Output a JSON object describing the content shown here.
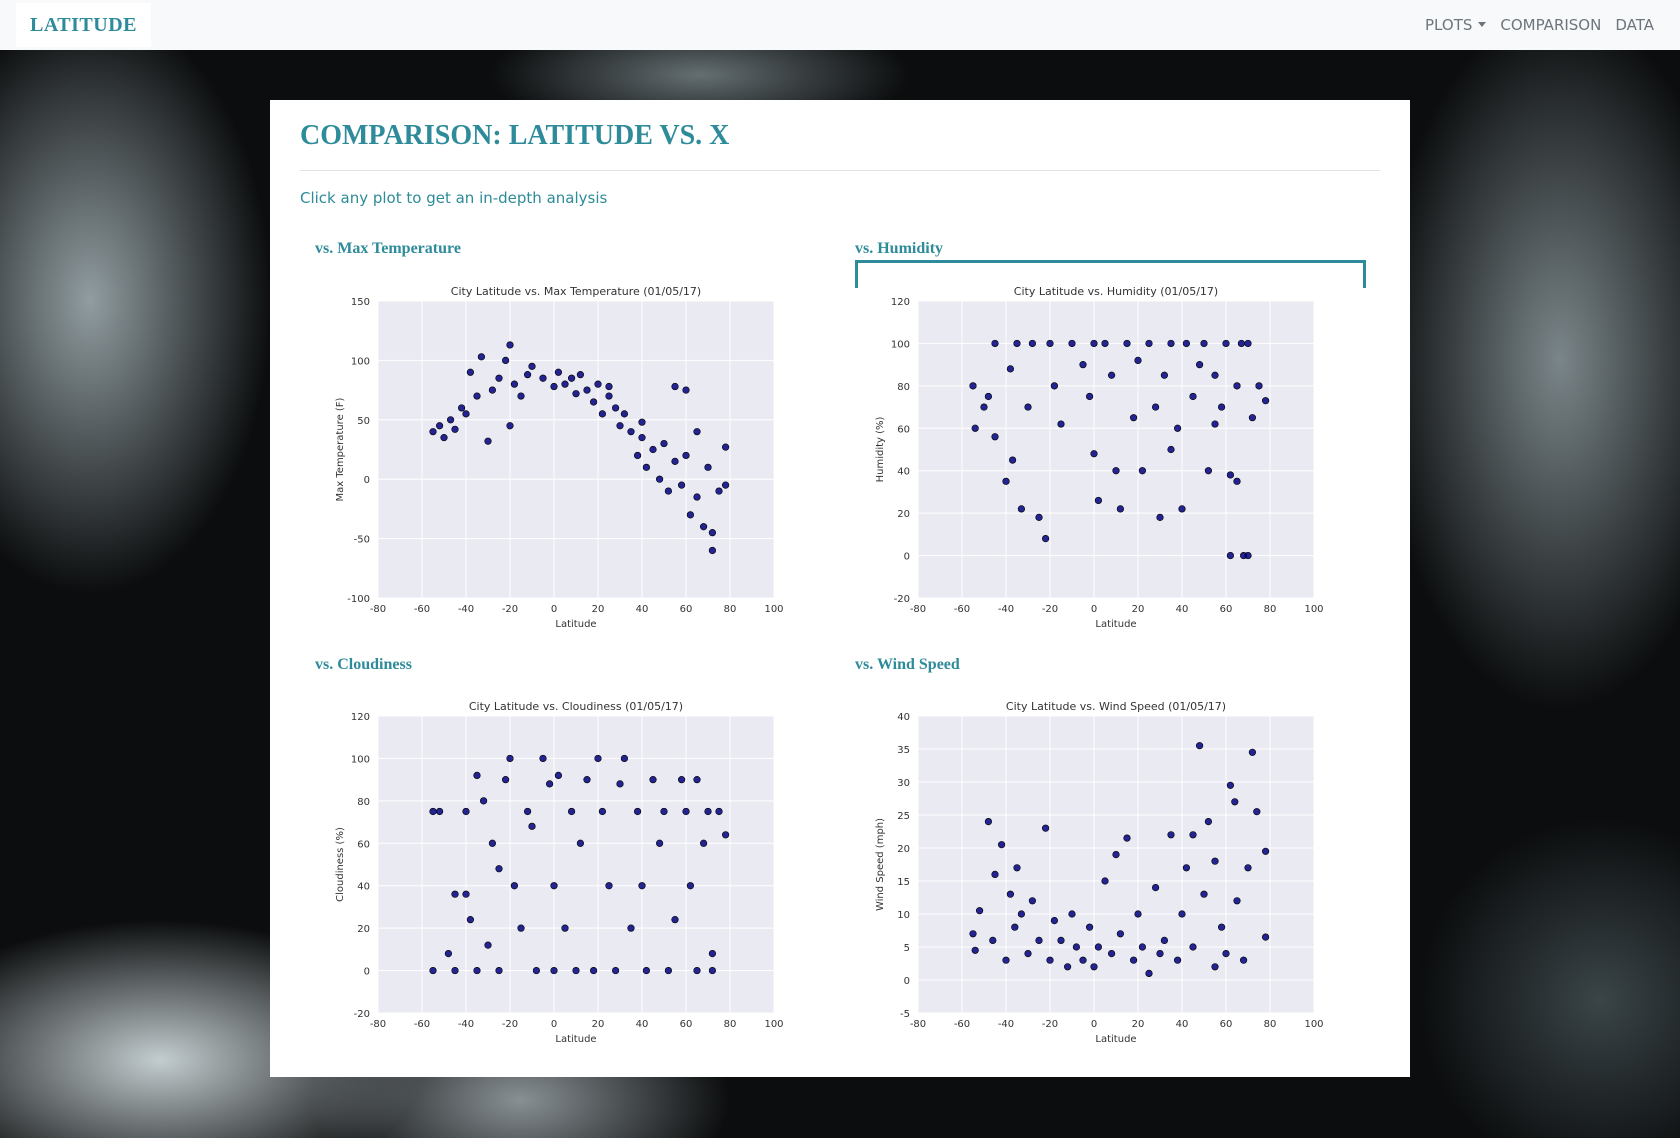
{
  "navbar": {
    "brand": "LATITUDE",
    "items": [
      "PLOTS",
      "COMPARISON",
      "DATA"
    ]
  },
  "header": {
    "title": "COMPARISON: LATITUDE VS. X",
    "subtitle": "Click any plot to get an in-depth analysis"
  },
  "sections": [
    "vs. Max Temperature",
    "vs. Humidity",
    "vs. Cloudiness",
    "vs. Wind Speed"
  ],
  "chart_data": [
    {
      "type": "scatter",
      "title": "City Latitude vs. Max Temperature (01/05/17)",
      "xlabel": "Latitude",
      "ylabel": "Max Temperature (F)",
      "color": "#000080",
      "grid": true,
      "xlim": [
        -80,
        100
      ],
      "xticks": [
        -80,
        -60,
        -40,
        -20,
        0,
        20,
        40,
        60,
        80,
        100
      ],
      "ylim": [
        -100,
        150
      ],
      "yticks": [
        -100,
        -50,
        0,
        50,
        100,
        150
      ],
      "x": [
        -55,
        -52,
        -47,
        -45,
        -42,
        -40,
        -38,
        -35,
        -33,
        -30,
        -28,
        -25,
        -22,
        -20,
        -20,
        -18,
        -15,
        -12,
        -10,
        -5,
        0,
        2,
        5,
        8,
        10,
        12,
        15,
        18,
        20,
        22,
        25,
        28,
        30,
        32,
        35,
        38,
        40,
        42,
        45,
        48,
        50,
        52,
        55,
        55,
        58,
        60,
        60,
        62,
        65,
        65,
        68,
        70,
        72,
        72,
        75,
        78,
        78,
        -50,
        25,
        40
      ],
      "values": [
        40,
        45,
        50,
        42,
        60,
        55,
        90,
        70,
        103,
        32,
        75,
        85,
        100,
        113,
        45,
        80,
        70,
        88,
        95,
        85,
        78,
        90,
        80,
        85,
        72,
        88,
        75,
        65,
        80,
        55,
        70,
        60,
        45,
        55,
        40,
        20,
        35,
        10,
        25,
        0,
        30,
        -10,
        78,
        15,
        -5,
        75,
        20,
        -30,
        40,
        -15,
        -40,
        10,
        -60,
        -45,
        -10,
        27,
        -5,
        35,
        78,
        48
      ]
    },
    {
      "type": "scatter",
      "title": "City Latitude vs. Humidity (01/05/17)",
      "xlabel": "Latitude",
      "ylabel": "Humidity (%)",
      "color": "#000080",
      "grid": true,
      "xlim": [
        -80,
        100
      ],
      "xticks": [
        -80,
        -60,
        -40,
        -20,
        0,
        20,
        40,
        60,
        80,
        100
      ],
      "ylim": [
        -20,
        120
      ],
      "yticks": [
        -20,
        0,
        20,
        40,
        60,
        80,
        100,
        120
      ],
      "x": [
        -55,
        -54,
        -50,
        -48,
        -45,
        -45,
        -40,
        -38,
        -37,
        -35,
        -33,
        -30,
        -28,
        -25,
        -22,
        -20,
        -18,
        -15,
        -10,
        -5,
        -2,
        0,
        0,
        2,
        5,
        8,
        10,
        12,
        15,
        18,
        20,
        22,
        25,
        28,
        30,
        32,
        35,
        35,
        38,
        40,
        42,
        45,
        48,
        50,
        52,
        55,
        58,
        60,
        62,
        62,
        65,
        65,
        68,
        70,
        70,
        72,
        75,
        78,
        67,
        55
      ],
      "values": [
        80,
        60,
        70,
        75,
        100,
        56,
        35,
        88,
        45,
        100,
        22,
        70,
        100,
        18,
        8,
        100,
        80,
        62,
        100,
        90,
        75,
        100,
        48,
        26,
        100,
        85,
        40,
        22,
        100,
        65,
        92,
        40,
        100,
        70,
        18,
        85,
        100,
        50,
        60,
        22,
        100,
        75,
        90,
        100,
        40,
        85,
        70,
        100,
        38,
        0,
        80,
        35,
        0,
        100,
        0,
        65,
        80,
        73,
        100,
        62
      ]
    },
    {
      "type": "scatter",
      "title": "City Latitude vs. Cloudiness (01/05/17)",
      "xlabel": "Latitude",
      "ylabel": "Cloudiness (%)",
      "color": "#000080",
      "grid": true,
      "xlim": [
        -80,
        100
      ],
      "xticks": [
        -80,
        -60,
        -40,
        -20,
        0,
        20,
        40,
        60,
        80,
        100
      ],
      "ylim": [
        -20,
        120
      ],
      "yticks": [
        -20,
        0,
        20,
        40,
        60,
        80,
        100,
        120
      ],
      "x": [
        -55,
        -55,
        -52,
        -48,
        -45,
        -45,
        -40,
        -40,
        -38,
        -35,
        -35,
        -32,
        -30,
        -28,
        -25,
        -25,
        -22,
        -20,
        -18,
        -15,
        -12,
        -10,
        -8,
        -5,
        -2,
        0,
        0,
        2,
        5,
        8,
        10,
        12,
        15,
        18,
        20,
        22,
        25,
        28,
        30,
        32,
        35,
        38,
        40,
        42,
        45,
        48,
        50,
        52,
        55,
        58,
        60,
        62,
        65,
        65,
        68,
        70,
        72,
        72,
        75,
        78
      ],
      "values": [
        0,
        75,
        75,
        8,
        36,
        0,
        75,
        36,
        24,
        0,
        92,
        80,
        12,
        60,
        0,
        48,
        90,
        100,
        40,
        20,
        75,
        68,
        0,
        100,
        88,
        40,
        0,
        92,
        20,
        75,
        0,
        60,
        90,
        0,
        100,
        75,
        40,
        0,
        88,
        100,
        20,
        75,
        40,
        0,
        90,
        60,
        75,
        0,
        24,
        90,
        75,
        40,
        0,
        90,
        60,
        75,
        0,
        8,
        75,
        64
      ]
    },
    {
      "type": "scatter",
      "title": "City Latitude vs. Wind Speed (01/05/17)",
      "xlabel": "Latitude",
      "ylabel": "Wind Speed (mph)",
      "color": "#000080",
      "grid": true,
      "xlim": [
        -80,
        100
      ],
      "xticks": [
        -80,
        -60,
        -40,
        -20,
        0,
        20,
        40,
        60,
        80,
        100
      ],
      "ylim": [
        -5,
        40
      ],
      "yticks": [
        -5,
        0,
        5,
        10,
        15,
        20,
        25,
        30,
        35,
        40
      ],
      "x": [
        -55,
        -54,
        -52,
        -48,
        -46,
        -45,
        -42,
        -40,
        -38,
        -36,
        -35,
        -33,
        -30,
        -28,
        -25,
        -22,
        -20,
        -18,
        -15,
        -12,
        -10,
        -8,
        -5,
        -2,
        0,
        2,
        5,
        8,
        10,
        12,
        15,
        18,
        20,
        22,
        25,
        28,
        30,
        32,
        35,
        38,
        40,
        42,
        45,
        48,
        50,
        52,
        55,
        58,
        60,
        62,
        64,
        65,
        68,
        70,
        72,
        74,
        78,
        78,
        55,
        45
      ],
      "values": [
        7,
        4.5,
        10.5,
        24,
        6,
        16,
        20.5,
        3,
        13,
        8,
        17,
        10,
        4,
        12,
        6,
        23,
        3,
        9,
        6,
        2,
        10,
        5,
        3,
        8,
        2,
        5,
        15,
        4,
        19,
        7,
        21.5,
        3,
        10,
        5,
        1,
        14,
        4,
        6,
        22,
        3,
        10,
        17,
        5,
        35.5,
        13,
        24,
        2,
        8,
        4,
        29.5,
        27,
        12,
        3,
        17,
        34.5,
        25.5,
        19.5,
        6.5,
        18,
        22
      ]
    }
  ]
}
